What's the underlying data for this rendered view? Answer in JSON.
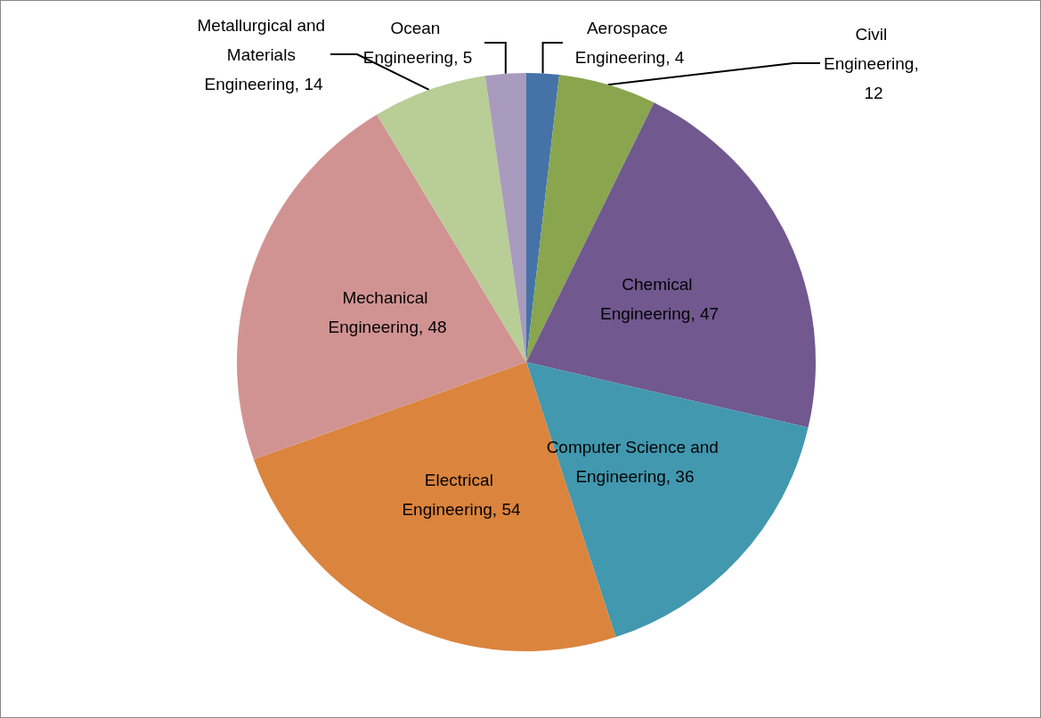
{
  "chart_data": {
    "type": "pie",
    "categories": [
      "Aerospace Engineering",
      "Civil Engineering",
      "Chemical Engineering",
      "Computer Science and Engineering",
      "Electrical Engineering",
      "Mechanical Engineering",
      "Metallurgical and Materials Engineering",
      "Ocean Engineering"
    ],
    "values": [
      4,
      12,
      47,
      36,
      54,
      48,
      14,
      5
    ],
    "value_labels": [
      ", 4",
      ", 12",
      ", 47",
      ", 36",
      ", 54",
      ", 48",
      ", 14",
      ", 5"
    ],
    "colors": [
      "#4572a7",
      "#89a54e",
      "#71588f",
      "#4198af",
      "#db843d",
      "#d19392",
      "#b9cd96",
      "#a99bbd"
    ],
    "legend": false
  }
}
